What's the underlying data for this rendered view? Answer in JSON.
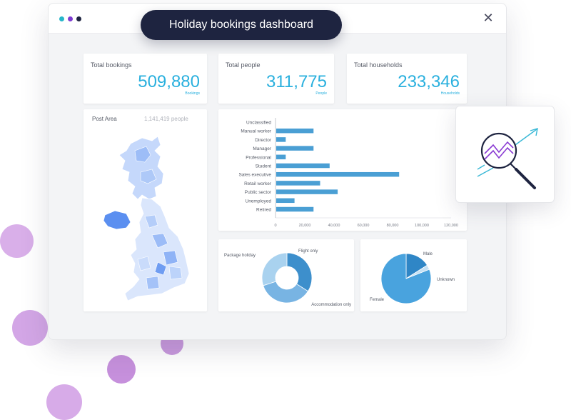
{
  "app": {
    "title": "Holiday bookings dashboard"
  },
  "window_controls": {
    "dot_colors": [
      "#27b6c9",
      "#7d3bd1",
      "#1e2440"
    ],
    "close_glyph": "✕"
  },
  "kpis": [
    {
      "label": "Total bookings",
      "value": "509,880",
      "unit": "Bookings"
    },
    {
      "label": "Total people",
      "value": "311,775",
      "unit": "People"
    },
    {
      "label": "Total households",
      "value": "233,346",
      "unit": "Households"
    }
  ],
  "map": {
    "title": "Post Area",
    "count": "1,141,419 people"
  },
  "chart_data": [
    {
      "type": "bar",
      "orientation": "horizontal",
      "categories": [
        "Unclassified",
        "Manual worker",
        "Director",
        "Manager",
        "Professional",
        "Student",
        "Sales executive",
        "Retail worker",
        "Public sector",
        "Unemployed",
        "Retired"
      ],
      "values": [
        0,
        25500,
        6500,
        25500,
        6500,
        36500,
        84000,
        30000,
        42000,
        12500,
        25500
      ],
      "xlim": [
        0,
        120000
      ],
      "ticks": [
        "0",
        "20,000",
        "40,000",
        "60,000",
        "80,000",
        "100,000",
        "120,000"
      ],
      "color": "#4a9fd4"
    },
    {
      "type": "pie",
      "variant": "donut",
      "slices": [
        {
          "label": "Flight only",
          "value": 34,
          "color": "#3d8fcc"
        },
        {
          "label": "Accommodation only",
          "value": 36,
          "color": "#78b4e3"
        },
        {
          "label": "Package holiday",
          "value": 30,
          "color": "#a9d2ef"
        }
      ]
    },
    {
      "type": "pie",
      "slices": [
        {
          "label": "Male",
          "value": 16,
          "color": "#2f86c6"
        },
        {
          "label": "Unknown",
          "value": 3,
          "color": "#c6e1f4"
        },
        {
          "label": "Female",
          "value": 81,
          "color": "#49a3de"
        }
      ]
    }
  ],
  "colors": {
    "accent": "#2ab0de",
    "bubble": "#cf9fe4",
    "bar": "#4a9fd4"
  }
}
